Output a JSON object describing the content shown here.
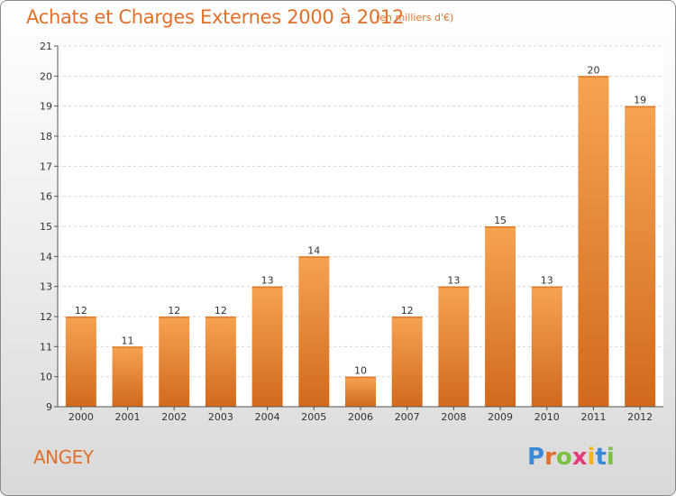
{
  "chart_data": {
    "type": "bar",
    "title": "Achats et Charges Externes 2000 à 2012",
    "subtitle": "(en milliers d'€)",
    "categories": [
      "2000",
      "2001",
      "2002",
      "2003",
      "2004",
      "2005",
      "2006",
      "2007",
      "2008",
      "2009",
      "2010",
      "2011",
      "2012"
    ],
    "values": [
      12,
      11,
      12,
      12,
      13,
      14,
      10,
      12,
      13,
      15,
      13,
      20,
      19
    ],
    "ylim": [
      9,
      21
    ],
    "yticks": [
      9,
      10,
      11,
      12,
      13,
      14,
      15,
      16,
      17,
      18,
      19,
      20,
      21
    ],
    "grid": true,
    "bar_color": "#f08a30"
  },
  "commune": "ANGEY",
  "logo": {
    "text": "Proxiti",
    "letters": [
      "P",
      "r",
      "o",
      "x",
      "i",
      "t",
      "i"
    ],
    "colors": [
      "#3a8ad8",
      "#e0702a",
      "#7cc242",
      "#e23c7e",
      "#f3b31c",
      "#3a8ad8",
      "#7cc242"
    ]
  }
}
